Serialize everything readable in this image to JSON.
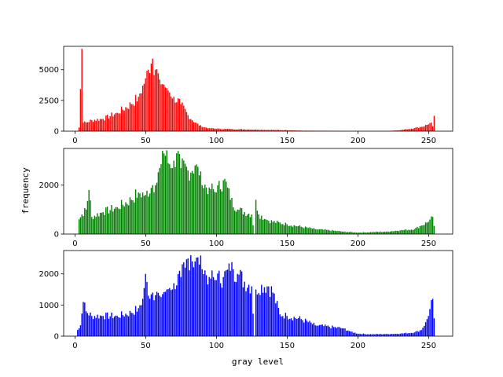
{
  "figure": {
    "xlabel": "gray level",
    "ylabel": "frequency"
  },
  "chart_data": [
    {
      "type": "bar",
      "series": [
        {
          "values": [],
          "color": "#ff0000"
        }
      ],
      "x": "bin index 0-255, one bar per gray level; values listed in 'keypoints'",
      "xlim": [
        -8,
        267
      ],
      "ylim": [
        0,
        6900
      ],
      "xticks": [
        0,
        50,
        100,
        150,
        200,
        250
      ],
      "yticks": [
        0,
        2500,
        5000
      ],
      "ytick_labels": [
        "0",
        "2500",
        "5000"
      ],
      "color": "#ff0000",
      "keypoints": [
        [
          0,
          0
        ],
        [
          2,
          0
        ],
        [
          3,
          300
        ],
        [
          5,
          6700
        ],
        [
          6,
          700
        ],
        [
          8,
          700
        ],
        [
          12,
          900
        ],
        [
          20,
          1000
        ],
        [
          30,
          1500
        ],
        [
          40,
          2200
        ],
        [
          45,
          2800
        ],
        [
          48,
          3700
        ],
        [
          50,
          4300
        ],
        [
          52,
          5000
        ],
        [
          54,
          5500
        ],
        [
          55,
          5900
        ],
        [
          57,
          5000
        ],
        [
          60,
          4200
        ],
        [
          65,
          3500
        ],
        [
          70,
          2800
        ],
        [
          75,
          2200
        ],
        [
          80,
          1300
        ],
        [
          85,
          700
        ],
        [
          90,
          350
        ],
        [
          95,
          250
        ],
        [
          100,
          200
        ],
        [
          110,
          170
        ],
        [
          120,
          150
        ],
        [
          130,
          120
        ],
        [
          140,
          100
        ],
        [
          150,
          80
        ],
        [
          160,
          40
        ],
        [
          170,
          30
        ],
        [
          180,
          20
        ],
        [
          190,
          10
        ],
        [
          200,
          5
        ],
        [
          210,
          0
        ],
        [
          220,
          0
        ],
        [
          230,
          80
        ],
        [
          240,
          250
        ],
        [
          245,
          350
        ],
        [
          250,
          550
        ],
        [
          252,
          700
        ],
        [
          253,
          400
        ],
        [
          254,
          1250
        ],
        [
          255,
          0
        ]
      ]
    },
    {
      "type": "bar",
      "x": "bin index 0-255",
      "xlim": [
        -8,
        267
      ],
      "ylim": [
        0,
        3500
      ],
      "xticks": [
        0,
        50,
        100,
        150,
        200,
        250
      ],
      "yticks": [
        0,
        2000
      ],
      "ytick_labels": [
        "0",
        "2000"
      ],
      "color": "#008000",
      "keypoints": [
        [
          0,
          0
        ],
        [
          2,
          0
        ],
        [
          3,
          600
        ],
        [
          5,
          800
        ],
        [
          8,
          1000
        ],
        [
          10,
          1800
        ],
        [
          12,
          700
        ],
        [
          20,
          900
        ],
        [
          30,
          1100
        ],
        [
          40,
          1400
        ],
        [
          45,
          1700
        ],
        [
          50,
          1600
        ],
        [
          55,
          2000
        ],
        [
          58,
          2100
        ],
        [
          60,
          2700
        ],
        [
          62,
          3400
        ],
        [
          64,
          3200
        ],
        [
          66,
          2900
        ],
        [
          70,
          3000
        ],
        [
          72,
          3300
        ],
        [
          75,
          2700
        ],
        [
          80,
          2600
        ],
        [
          85,
          2800
        ],
        [
          88,
          2400
        ],
        [
          90,
          2000
        ],
        [
          95,
          1900
        ],
        [
          100,
          1700
        ],
        [
          105,
          2200
        ],
        [
          108,
          1900
        ],
        [
          110,
          1400
        ],
        [
          115,
          1000
        ],
        [
          120,
          900
        ],
        [
          125,
          800
        ],
        [
          127,
          0
        ],
        [
          128,
          1400
        ],
        [
          130,
          800
        ],
        [
          135,
          600
        ],
        [
          140,
          500
        ],
        [
          150,
          400
        ],
        [
          160,
          300
        ],
        [
          170,
          200
        ],
        [
          180,
          150
        ],
        [
          190,
          100
        ],
        [
          200,
          60
        ],
        [
          210,
          80
        ],
        [
          220,
          100
        ],
        [
          230,
          150
        ],
        [
          240,
          200
        ],
        [
          245,
          350
        ],
        [
          250,
          500
        ],
        [
          253,
          700
        ],
        [
          255,
          0
        ]
      ]
    },
    {
      "type": "bar",
      "x": "bin index 0-255",
      "xlim": [
        -8,
        267
      ],
      "ylim": [
        0,
        2750
      ],
      "xticks": [
        0,
        50,
        100,
        150,
        200,
        250
      ],
      "yticks": [
        0,
        1000,
        2000
      ],
      "ytick_labels": [
        "0",
        "1000",
        "2000"
      ],
      "color": "#0000ff",
      "keypoints": [
        [
          0,
          0
        ],
        [
          1,
          0
        ],
        [
          2,
          200
        ],
        [
          4,
          350
        ],
        [
          6,
          1100
        ],
        [
          8,
          800
        ],
        [
          12,
          650
        ],
        [
          20,
          650
        ],
        [
          30,
          650
        ],
        [
          40,
          750
        ],
        [
          45,
          900
        ],
        [
          48,
          1200
        ],
        [
          50,
          2000
        ],
        [
          52,
          1300
        ],
        [
          55,
          1400
        ],
        [
          60,
          1300
        ],
        [
          65,
          1500
        ],
        [
          70,
          1700
        ],
        [
          75,
          1900
        ],
        [
          78,
          2200
        ],
        [
          80,
          2500
        ],
        [
          82,
          2600
        ],
        [
          85,
          2400
        ],
        [
          88,
          2300
        ],
        [
          90,
          2150
        ],
        [
          95,
          1900
        ],
        [
          100,
          1800
        ],
        [
          105,
          1900
        ],
        [
          110,
          2100
        ],
        [
          112,
          2150
        ],
        [
          115,
          2000
        ],
        [
          120,
          1750
        ],
        [
          125,
          1600
        ],
        [
          127,
          0
        ],
        [
          128,
          1500
        ],
        [
          132,
          1650
        ],
        [
          137,
          1600
        ],
        [
          140,
          1400
        ],
        [
          145,
          700
        ],
        [
          150,
          650
        ],
        [
          160,
          550
        ],
        [
          170,
          350
        ],
        [
          180,
          300
        ],
        [
          190,
          250
        ],
        [
          195,
          150
        ],
        [
          200,
          80
        ],
        [
          210,
          60
        ],
        [
          220,
          70
        ],
        [
          230,
          80
        ],
        [
          240,
          120
        ],
        [
          245,
          200
        ],
        [
          248,
          450
        ],
        [
          250,
          650
        ],
        [
          253,
          1200
        ],
        [
          255,
          0
        ]
      ]
    }
  ]
}
